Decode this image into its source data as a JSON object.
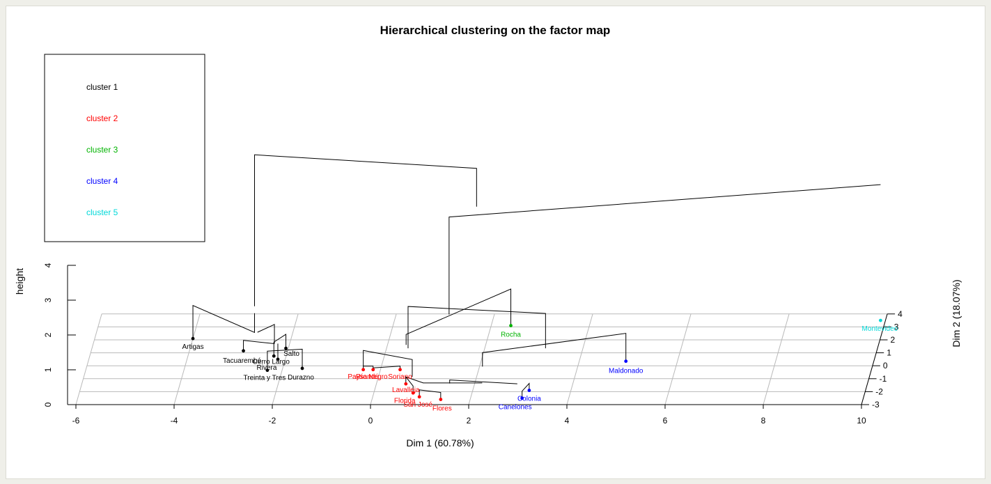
{
  "chart_data": {
    "type": "scatter",
    "title": "Hierarchical clustering on the factor map",
    "xlabel": "Dim 1 (60.78%)",
    "ylabel": "Dim 2 (18.07%)",
    "zlabel": "height",
    "xlim": [
      -6,
      10
    ],
    "ylim": [
      -3,
      4
    ],
    "zlim": [
      0,
      4
    ],
    "x_ticks": [
      "-6",
      "-4",
      "-2",
      "0",
      "2",
      "4",
      "6",
      "8",
      "10"
    ],
    "y_ticks": [
      "-3",
      "-2",
      "-1",
      "0",
      "1",
      "2",
      "3",
      "4"
    ],
    "z_ticks": [
      "0",
      "1",
      "2",
      "3",
      "4"
    ],
    "grid": true,
    "legend_position": "top-left",
    "colors": {
      "cluster 1": "#000000",
      "cluster 2": "#ff0000",
      "cluster 3": "#00b300",
      "cluster 4": "#0000ff",
      "cluster 5": "#00d8d8"
    },
    "legend": [
      {
        "label": "cluster 1",
        "color": "#000000"
      },
      {
        "label": "cluster 2",
        "color": "#ff0000"
      },
      {
        "label": "cluster 3",
        "color": "#00b300"
      },
      {
        "label": "cluster 4",
        "color": "#0000ff"
      },
      {
        "label": "cluster 5",
        "color": "#00d8d8"
      }
    ],
    "points": [
      {
        "name": "Artigas",
        "dim1": -4.0,
        "dim2": 2.1,
        "cluster": "cluster 1"
      },
      {
        "name": "Tacuarembó",
        "dim1": -2.9,
        "dim2": 1.15,
        "cluster": "cluster 1"
      },
      {
        "name": "Salto",
        "dim1": -2.05,
        "dim2": 1.35,
        "cluster": "cluster 1"
      },
      {
        "name": "Cerro Largo",
        "dim1": -2.25,
        "dim2": 0.75,
        "cluster": "cluster 1"
      },
      {
        "name": "Rivera",
        "dim1": -2.15,
        "dim2": 0.5,
        "cluster": "cluster 1"
      },
      {
        "name": "Treinta y Tres",
        "dim1": -2.3,
        "dim2": -0.35,
        "cluster": "cluster 1"
      },
      {
        "name": "Durazno",
        "dim1": -1.6,
        "dim2": -0.2,
        "cluster": "cluster 1"
      },
      {
        "name": "Paysandú",
        "dim1": -0.35,
        "dim2": -0.3,
        "cluster": "cluster 2"
      },
      {
        "name": "Río Negro",
        "dim1": -0.15,
        "dim2": -0.3,
        "cluster": "cluster 2"
      },
      {
        "name": "Soriano",
        "dim1": 0.4,
        "dim2": -0.3,
        "cluster": "cluster 2"
      },
      {
        "name": "Lavalleja",
        "dim1": 0.6,
        "dim2": -1.4,
        "cluster": "cluster 2"
      },
      {
        "name": "Florida",
        "dim1": 0.8,
        "dim2": -2.1,
        "cluster": "cluster 2"
      },
      {
        "name": "San José",
        "dim1": 0.95,
        "dim2": -2.4,
        "cluster": "cluster 2"
      },
      {
        "name": "Flores",
        "dim1": 1.4,
        "dim2": -2.6,
        "cluster": "cluster 2"
      },
      {
        "name": "Rocha",
        "dim1": 2.4,
        "dim2": 3.1,
        "cluster": "cluster 3"
      },
      {
        "name": "Maldonado",
        "dim1": 4.95,
        "dim2": 0.35,
        "cluster": "cluster 4"
      },
      {
        "name": "Colonia",
        "dim1": 3.15,
        "dim2": -1.9,
        "cluster": "cluster 4"
      },
      {
        "name": "Canelones",
        "dim1": 3.05,
        "dim2": -2.5,
        "cluster": "cluster 4"
      },
      {
        "name": "Montevideo",
        "dim1": 9.9,
        "dim2": 3.5,
        "cluster": "cluster 5"
      }
    ]
  }
}
